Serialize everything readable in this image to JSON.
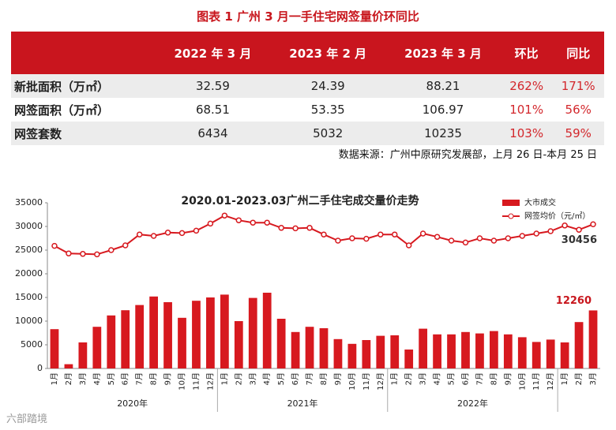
{
  "table": {
    "title": "图表 1  广州 3 月一手住宅网签量价环同比",
    "header": [
      "2022 年 3 月",
      "2023 年 2 月",
      "2023 年 3 月",
      "环比",
      "同比"
    ],
    "rows": [
      [
        "新批面积（万㎡）",
        "32.59",
        "24.39",
        "88.21",
        "262%",
        "171%"
      ],
      [
        "网签面积（万㎡）",
        "68.51",
        "53.35",
        "106.97",
        "101%",
        "56%"
      ],
      [
        "网签套数",
        "6434",
        "5032",
        "10235",
        "103%",
        "59%"
      ]
    ],
    "source": "数据来源：广州中原研究发展部，上月 26 日-本月 25 日"
  },
  "chart_data": {
    "type": "bar",
    "title": "2020.01-2023.03广州二手住宅成交量价走势",
    "categories": [
      "1月",
      "2月",
      "3月",
      "4月",
      "5月",
      "6月",
      "7月",
      "8月",
      "9月",
      "10月",
      "11月",
      "12月",
      "1月",
      "2月",
      "3月",
      "4月",
      "5月",
      "6月",
      "7月",
      "8月",
      "9月",
      "10月",
      "11月",
      "12月",
      "1月",
      "2月",
      "3月",
      "4月",
      "5月",
      "6月",
      "7月",
      "8月",
      "9月",
      "10月",
      "11月",
      "12月",
      "1月",
      "2月",
      "3月"
    ],
    "groups": [
      "2020年",
      "2021年",
      "2022年"
    ],
    "series": [
      {
        "name": "大市成交",
        "type": "bar",
        "color": "#d7191f",
        "values": [
          8300,
          900,
          5500,
          8800,
          11200,
          12300,
          13400,
          15200,
          14000,
          10700,
          14300,
          15000,
          15600,
          10000,
          14900,
          16000,
          10500,
          7700,
          8800,
          8500,
          6200,
          5200,
          6000,
          6900,
          7000,
          4000,
          8400,
          7200,
          7200,
          7700,
          7400,
          7900,
          7200,
          6600,
          5600,
          6100,
          5500,
          9800,
          12260
        ]
      },
      {
        "name": "网签均价（元/㎡）",
        "type": "line",
        "color": "#d7191f",
        "values": [
          25900,
          24300,
          24200,
          24100,
          25000,
          26000,
          28300,
          28000,
          28700,
          28600,
          29100,
          30600,
          32300,
          31300,
          30800,
          30800,
          29700,
          29600,
          29700,
          28300,
          27000,
          27500,
          27400,
          28300,
          28300,
          26000,
          28500,
          27800,
          27000,
          26600,
          27500,
          27000,
          27500,
          28000,
          28500,
          29000,
          30200,
          29300,
          30456
        ]
      }
    ],
    "ylim": [
      0,
      35000
    ],
    "yticks": [
      0,
      5000,
      10000,
      15000,
      20000,
      25000,
      30000,
      35000
    ],
    "grid": false
  },
  "watermark": "六部踏境"
}
